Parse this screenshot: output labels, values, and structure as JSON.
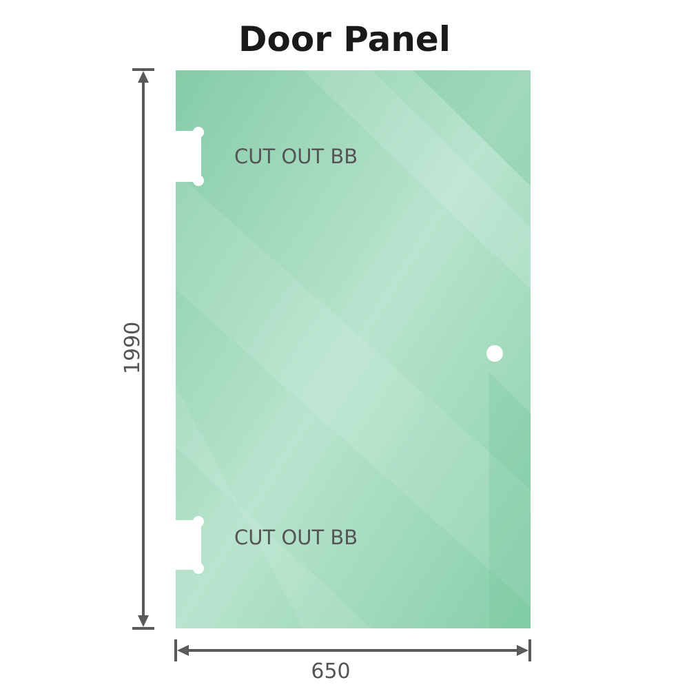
{
  "title": "Door Panel",
  "panel": {
    "glass_color": "#8fd3b0",
    "cutout_labels": [
      "CUT OUT BB",
      "CUT OUT BB"
    ]
  },
  "dimensions": {
    "height": "1990",
    "width": "650",
    "line_color": "#5a5a5a"
  }
}
